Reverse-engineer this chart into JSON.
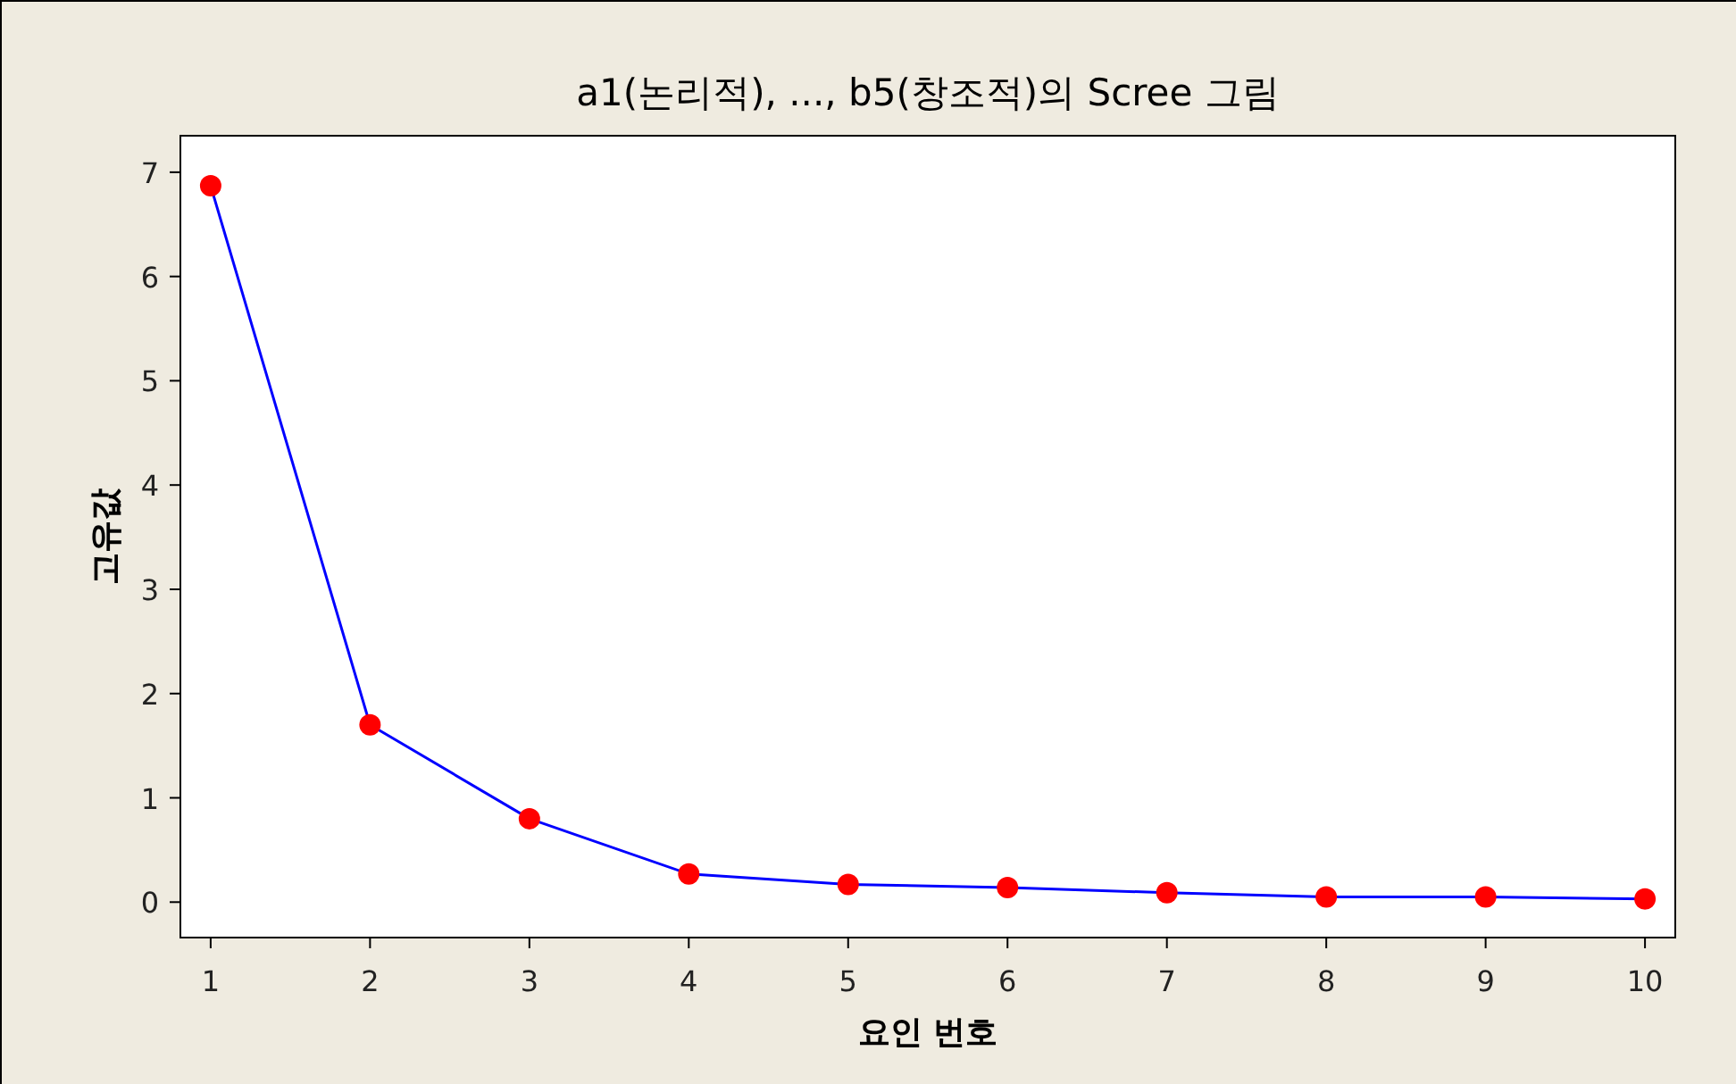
{
  "chart_data": {
    "type": "line",
    "title": "a1(논리적), ..., b5(창조적)의 Scree 그림",
    "xlabel": "요인 번호",
    "ylabel": "고유값",
    "x": [
      1,
      2,
      3,
      4,
      5,
      6,
      7,
      8,
      9,
      10
    ],
    "series": [
      {
        "color": "#0000ff",
        "colors": [
          "#ff0000",
          "#ff0000",
          "#ff0000",
          "#ff0000",
          "#ff0000",
          "#ff0000",
          "#ff0000",
          "#ff0000",
          "#ff0000",
          "#ff0000"
        ],
        "values": [
          6.87,
          1.7,
          0.8,
          0.27,
          0.17,
          0.14,
          0.09,
          0.05,
          0.05,
          0.03
        ]
      }
    ],
    "xlim": [
      0.81,
      10.19
    ],
    "xticks": [
      1,
      2,
      3,
      4,
      5,
      6,
      7,
      8,
      9,
      10
    ],
    "ylim": [
      -0.34,
      7.35
    ],
    "yticks": [
      0,
      1,
      2,
      3,
      4,
      5,
      6,
      7
    ],
    "marker": "circle",
    "line_style": "solid",
    "grid": false
  }
}
